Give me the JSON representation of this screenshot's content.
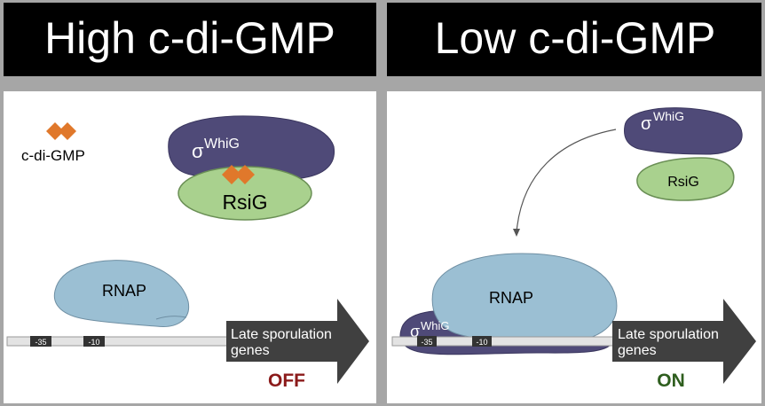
{
  "panels": {
    "left": {
      "title": "High c-di-GMP",
      "legend_label": "c-di-GMP",
      "sigma_symbol": "σ",
      "sigma_label": "WhiG",
      "rsig_label": "RsiG",
      "rnap_label": "RNAP",
      "promoter_minus35": "-35",
      "promoter_minus10": "-10",
      "gene_label_line1": "Late sporulation",
      "gene_label_line2": "genes",
      "state": "OFF"
    },
    "right": {
      "title": "Low c-di-GMP",
      "sigma_symbol": "σ",
      "sigma_label": "WhiG",
      "rsig_label": "RsiG",
      "rnap_label": "RNAP",
      "bound_sigma_symbol": "σ",
      "bound_sigma_label": "WhiG",
      "promoter_minus35": "-35",
      "promoter_minus10": "-10",
      "gene_label_line1": "Late sporulation",
      "gene_label_line2": "genes",
      "state": "ON"
    }
  },
  "colors": {
    "header_bg": "#000000",
    "header_text": "#ffffff",
    "panel_bg": "#ffffff",
    "frame": "#a6a6a6",
    "sigma": "#4f4a78",
    "rsig": "#a9d18e",
    "rnap": "#9bbfd3",
    "c_di_gmp": "#e0782b",
    "arrow": "#404040",
    "off_text": "#8b1a1a",
    "on_text": "#2e5e1e",
    "dna": "#e3e3e3",
    "promoter_box": "#333333"
  },
  "icons": {
    "ligand": "diamond-pair-icon",
    "curved_arrow": "curved-arrow-icon",
    "gene_arrow": "block-arrow-icon"
  }
}
